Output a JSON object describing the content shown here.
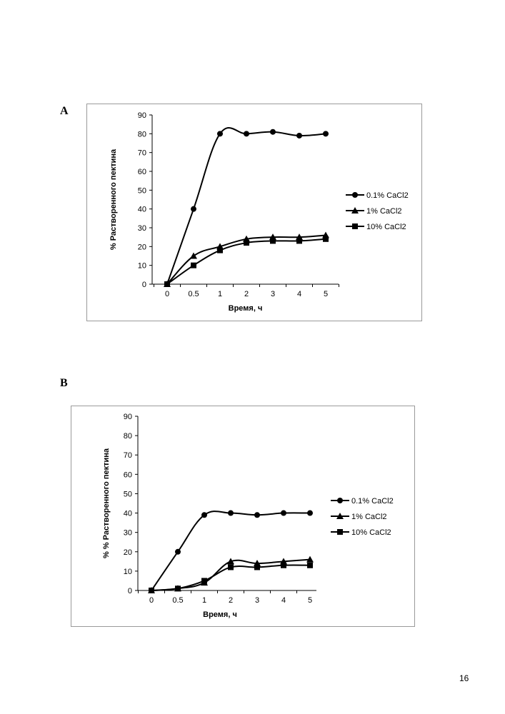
{
  "page_number": "16",
  "chart_data": [
    {
      "panel_label": "A",
      "type": "line",
      "title": "",
      "xlabel": "Время, ч",
      "ylabel": "% Растворенного пектина",
      "categories": [
        "0",
        "0.5",
        "1",
        "2",
        "3",
        "4",
        "5"
      ],
      "ylim": [
        0,
        90
      ],
      "yticks": [
        0,
        10,
        20,
        30,
        40,
        50,
        60,
        70,
        80,
        90
      ],
      "grid": false,
      "legend_position": "right",
      "series": [
        {
          "name": "0.1% CaCl2",
          "marker": "circle",
          "values": [
            0,
            40,
            80,
            80,
            81,
            79,
            80
          ]
        },
        {
          "name": "1% CaCl2",
          "marker": "triangle",
          "values": [
            0,
            15,
            20,
            24,
            25,
            25,
            26
          ]
        },
        {
          "name": "10% CaCl2",
          "marker": "square",
          "values": [
            0,
            10,
            18,
            22,
            23,
            23,
            24
          ]
        }
      ]
    },
    {
      "panel_label": "B",
      "type": "line",
      "title": "",
      "xlabel": "Время, ч",
      "ylabel": "% % Растворенного пектина",
      "categories": [
        "0",
        "0.5",
        "1",
        "2",
        "3",
        "4",
        "5"
      ],
      "ylim": [
        0,
        90
      ],
      "yticks": [
        0,
        10,
        20,
        30,
        40,
        50,
        60,
        70,
        80,
        90
      ],
      "grid": false,
      "legend_position": "right",
      "series": [
        {
          "name": "0.1% CaCl2",
          "marker": "circle",
          "values": [
            0,
            20,
            39,
            40,
            39,
            40,
            40
          ]
        },
        {
          "name": "1% CaCl2",
          "marker": "triangle",
          "values": [
            0,
            1,
            4,
            15,
            14,
            15,
            16
          ]
        },
        {
          "name": "10% CaCl2",
          "marker": "square",
          "values": [
            0,
            1,
            5,
            12,
            12,
            13,
            13
          ]
        }
      ]
    }
  ]
}
